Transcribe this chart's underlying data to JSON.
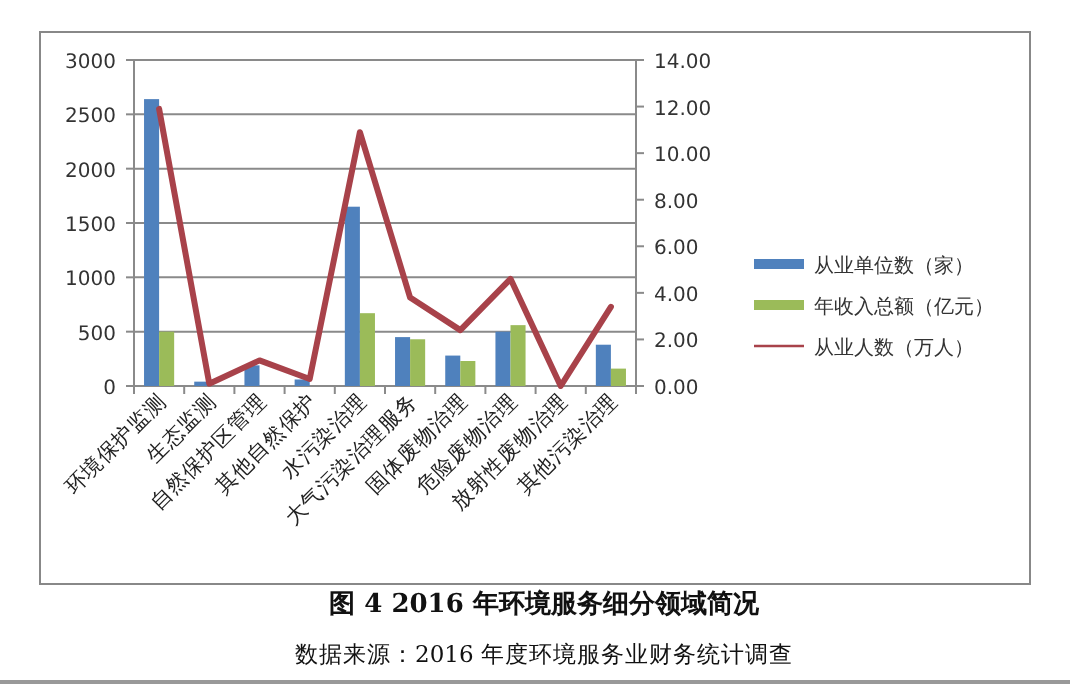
{
  "chart_data": {
    "type": "bar",
    "title": "图 4  2016 年环境服务细分领域简况",
    "annotations": [
      "数据来源：2016 年度环境服务业财务统计调查"
    ],
    "categories": [
      "环境保护监测",
      "生态监测",
      "自然保护区管理",
      "其他自然保护",
      "水污染治理",
      "大气污染治理服务",
      "固体废物治理",
      "危险废物治理",
      "放射性废物治理",
      "其他污染治理"
    ],
    "series": [
      {
        "name": "从业单位数（家）",
        "color": "#4f81bd",
        "values": [
          2640,
          40,
          190,
          60,
          1650,
          450,
          280,
          500,
          0,
          380
        ]
      },
      {
        "name": "年收入总额（亿元）",
        "color": "#9bbb59",
        "values": [
          500,
          0,
          0,
          0,
          670,
          430,
          230,
          560,
          null,
          160
        ]
      },
      {
        "name": "从业人数（万人）",
        "color": "#a8424a",
        "type": "line",
        "axis": "y2",
        "values": [
          11.9,
          0.1,
          1.1,
          0.3,
          10.9,
          3.8,
          2.4,
          4.6,
          0.0,
          3.4
        ]
      }
    ],
    "ylim": [
      0,
      3000
    ],
    "yticks": [
      0,
      500,
      1000,
      1500,
      2000,
      2500,
      3000
    ],
    "y2lim": [
      0,
      14
    ],
    "y2ticks": [
      {
        "value": 0,
        "label": "0.00"
      },
      {
        "value": 2,
        "label": "2.00"
      },
      {
        "value": 4,
        "label": "4.00"
      },
      {
        "value": 6,
        "label": "6.00"
      },
      {
        "value": 8,
        "label": "8.00"
      },
      {
        "value": 10,
        "label": "10.00"
      },
      {
        "value": 12,
        "label": "12.00"
      },
      {
        "value": 14,
        "label": "14.00"
      }
    ],
    "grid": "y",
    "legend": "right"
  }
}
